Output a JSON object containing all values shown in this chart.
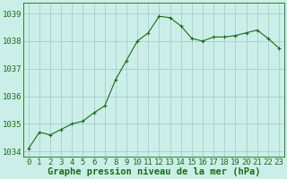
{
  "x": [
    0,
    1,
    2,
    3,
    4,
    5,
    6,
    7,
    8,
    9,
    10,
    11,
    12,
    13,
    14,
    15,
    16,
    17,
    18,
    19,
    20,
    21,
    22,
    23
  ],
  "y": [
    1034.1,
    1034.7,
    1034.6,
    1034.8,
    1035.0,
    1035.1,
    1035.4,
    1035.65,
    1036.6,
    1037.3,
    1038.0,
    1038.3,
    1038.9,
    1038.85,
    1038.55,
    1038.1,
    1038.0,
    1038.15,
    1038.15,
    1038.2,
    1038.3,
    1038.4,
    1038.1,
    1037.75
  ],
  "line_color": "#1a6b1a",
  "marker_color": "#1a6b1a",
  "bg_color": "#cceee8",
  "grid_color": "#aacccc",
  "xlabel": "Graphe pression niveau de la mer (hPa)",
  "xlabel_color": "#1a6b1a",
  "tick_color": "#1a6b1a",
  "ylim": [
    1033.8,
    1039.4
  ],
  "yticks": [
    1034,
    1035,
    1036,
    1037,
    1038,
    1039
  ],
  "xticks": [
    0,
    1,
    2,
    3,
    4,
    5,
    6,
    7,
    8,
    9,
    10,
    11,
    12,
    13,
    14,
    15,
    16,
    17,
    18,
    19,
    20,
    21,
    22,
    23
  ],
  "font_size_xlabel": 7.5,
  "font_size_ticks": 6.5,
  "line_width": 0.8,
  "marker_size": 2.5
}
